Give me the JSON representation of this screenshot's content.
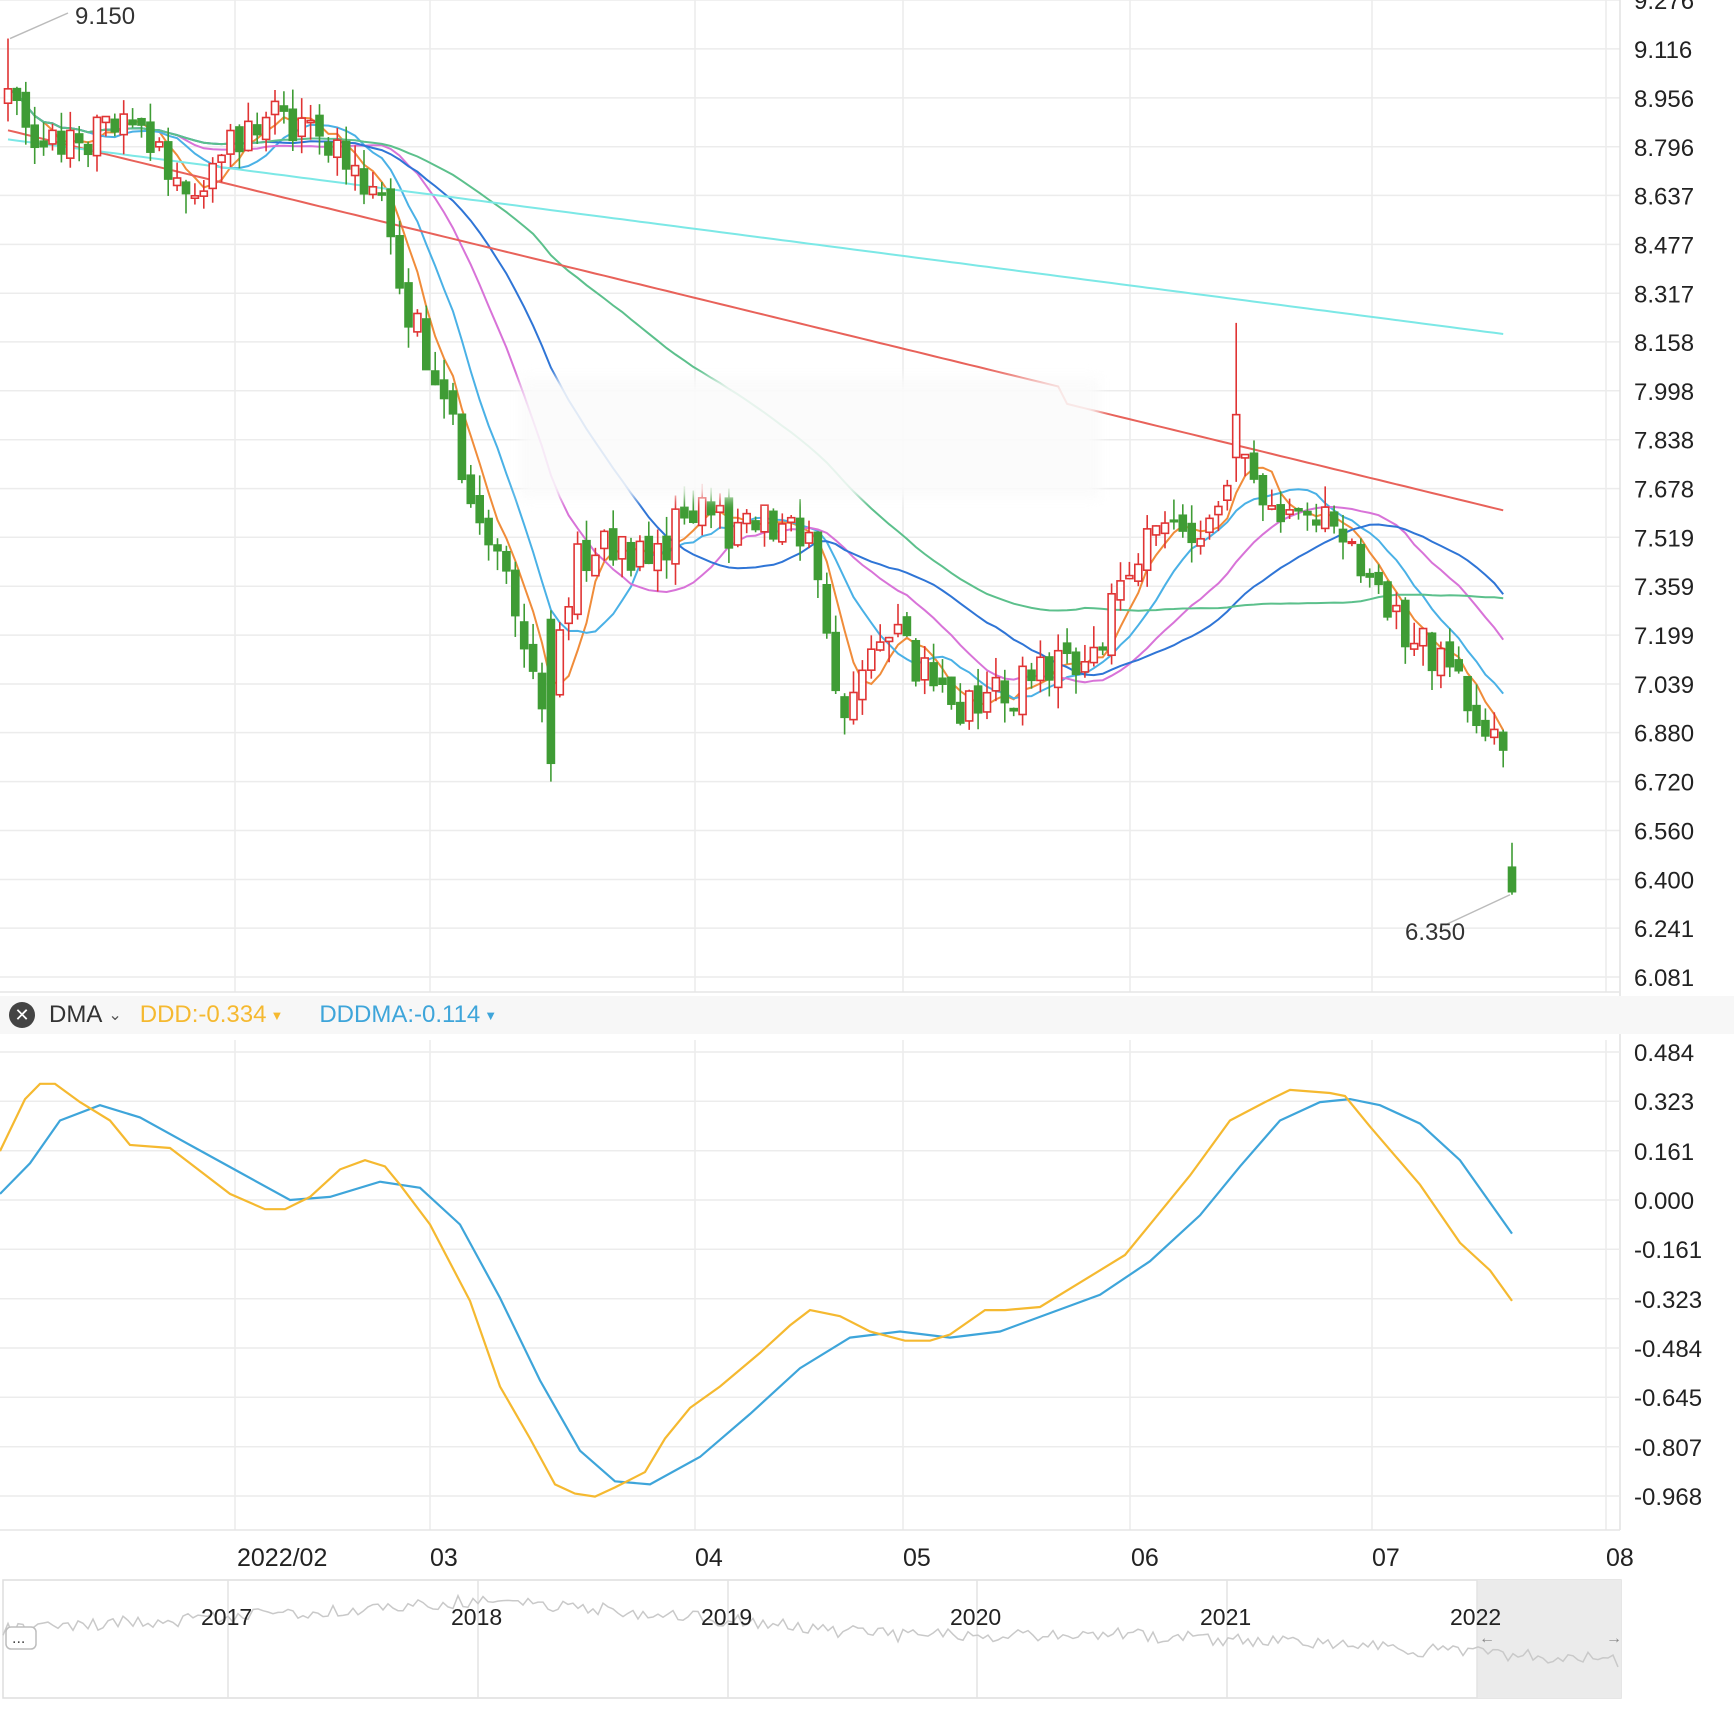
{
  "chart_data": [
    {
      "type": "candlestick",
      "title": "",
      "price_axis": [
        9.276,
        9.116,
        8.956,
        8.796,
        8.637,
        8.477,
        8.317,
        8.158,
        7.998,
        7.838,
        7.678,
        7.519,
        7.359,
        7.199,
        7.039,
        6.88,
        6.72,
        6.56,
        6.4,
        6.241,
        6.081
      ],
      "price_labels": [
        "9.276",
        "9.116",
        "8.956",
        "8.796",
        "8.637",
        "8.477",
        "8.317",
        "8.158",
        "7.998",
        "7.838",
        "7.678",
        "7.519",
        "7.359",
        "7.199",
        "7.039",
        "6.880",
        "6.720",
        "6.560",
        "6.400",
        "6.241",
        "6.081"
      ],
      "x_labels": [
        "2022/02",
        "03",
        "04",
        "05",
        "06",
        "07",
        "08"
      ],
      "high_marker": "9.150",
      "low_marker": "6.350",
      "ylim": [
        6.06,
        9.28
      ],
      "grid": true,
      "colors": {
        "up": "#e03434",
        "down": "#3f9c35"
      },
      "moving_averages": {
        "ma5": "#f08c3a",
        "ma10": "#4ab1e6",
        "ma20": "#d873d8",
        "ma30": "#2f75d6",
        "ma60": "#5cc08c",
        "ma120": "#e8625a",
        "ma250": "#7ce8e6"
      }
    },
    {
      "type": "line",
      "indicator": "DMA",
      "y_axis": [
        0.484,
        0.323,
        0.161,
        0.0,
        -0.161,
        -0.323,
        -0.484,
        -0.645,
        -0.807,
        -0.968
      ],
      "y_labels": [
        "0.484",
        "0.323",
        "0.161",
        "0.000",
        "-0.161",
        "-0.323",
        "-0.484",
        "-0.645",
        "-0.807",
        "-0.968"
      ],
      "ylim": [
        -1.08,
        0.52
      ],
      "series": [
        {
          "name": "DDD",
          "color": "#f5b930"
        },
        {
          "name": "DDDMA",
          "color": "#3ea5da"
        }
      ]
    },
    {
      "type": "area",
      "role": "navigator",
      "x_labels": [
        "2017",
        "2018",
        "2019",
        "2020",
        "2021",
        "2022"
      ]
    }
  ],
  "indicator_bar": {
    "close_icon": "close-circle-icon",
    "name": "DMA",
    "ddd_label": "DDD:-0.334",
    "dddma_label": "DDDMA:-0.114",
    "more_label": "..."
  }
}
